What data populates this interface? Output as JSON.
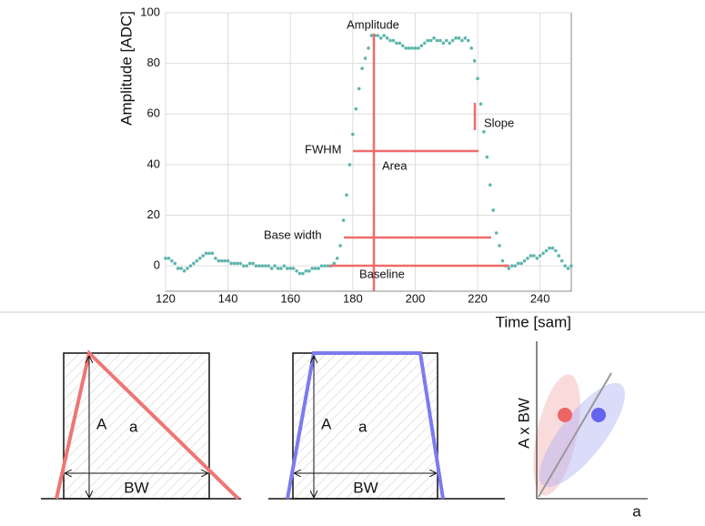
{
  "chart_data": {
    "type": "scatter",
    "x_label": "Time [sam]",
    "y_label": "Amplitude [ADC]",
    "x": [
      120,
      121,
      122,
      123,
      124,
      125,
      126,
      127,
      128,
      129,
      130,
      131,
      132,
      133,
      134,
      135,
      136,
      137,
      138,
      139,
      140,
      141,
      142,
      143,
      144,
      145,
      146,
      147,
      148,
      149,
      150,
      151,
      152,
      153,
      154,
      155,
      156,
      157,
      158,
      159,
      160,
      161,
      162,
      163,
      164,
      165,
      166,
      167,
      168,
      169,
      170,
      171,
      172,
      173,
      174,
      175,
      176,
      177,
      178,
      179,
      180,
      181,
      182,
      183,
      184,
      185,
      186,
      187,
      188,
      189,
      190,
      191,
      192,
      193,
      194,
      195,
      196,
      197,
      198,
      199,
      200,
      201,
      202,
      203,
      204,
      205,
      206,
      207,
      208,
      209,
      210,
      211,
      212,
      213,
      214,
      215,
      216,
      217,
      218,
      219,
      220,
      221,
      222,
      223,
      224,
      225,
      226,
      227,
      228,
      229,
      230,
      231,
      232,
      233,
      234,
      235,
      236,
      237,
      238,
      239,
      240,
      241,
      242,
      243,
      244,
      245,
      246,
      247,
      248,
      249,
      250
    ],
    "values": [
      3,
      3,
      2,
      1,
      -1,
      -1,
      -2,
      -1,
      0,
      1,
      2,
      3,
      4,
      5,
      5,
      5,
      3,
      2,
      2,
      2,
      2,
      1,
      1,
      1,
      1,
      0,
      0,
      1,
      1,
      0,
      0,
      0,
      0,
      0,
      -1,
      0,
      -1,
      -1,
      0,
      -1,
      -1,
      -1,
      -2,
      -3,
      -3,
      -2,
      -2,
      -1,
      -1,
      -1,
      0,
      0,
      0,
      0,
      1,
      3,
      8,
      18,
      28,
      40,
      52,
      62,
      70,
      78,
      82,
      86,
      91,
      91,
      91,
      90,
      91,
      90,
      89,
      89,
      88,
      88,
      87,
      86,
      86,
      86,
      86,
      86,
      87,
      88,
      89,
      89,
      90,
      89,
      89,
      88,
      89,
      88,
      89,
      90,
      90,
      89,
      90,
      89,
      86,
      81,
      74,
      64,
      53,
      43,
      32,
      22,
      13,
      8,
      2,
      0,
      -1,
      0,
      0,
      1,
      1,
      2,
      3,
      4,
      4,
      3,
      4,
      5,
      6,
      7,
      7,
      6,
      4,
      2,
      0,
      -1,
      0
    ],
    "color": "#5db5ad",
    "xlim": [
      120,
      250
    ],
    "ylim": [
      -10,
      100
    ],
    "xticks": [
      120,
      140,
      160,
      180,
      200,
      220,
      240
    ],
    "yticks": [
      0,
      20,
      40,
      60,
      80,
      100
    ],
    "grid": true,
    "annotations": [
      "Amplitude",
      "Slope",
      "FWHM",
      "Area",
      "Base width",
      "Baseline"
    ]
  },
  "diagrams": {
    "triangle": {
      "height": "A",
      "area": "a",
      "width": "BW"
    },
    "trapezoid": {
      "height": "A",
      "area": "a",
      "width": "BW"
    },
    "correlation": {
      "y_label": "A x BW",
      "x_label": "a"
    }
  }
}
